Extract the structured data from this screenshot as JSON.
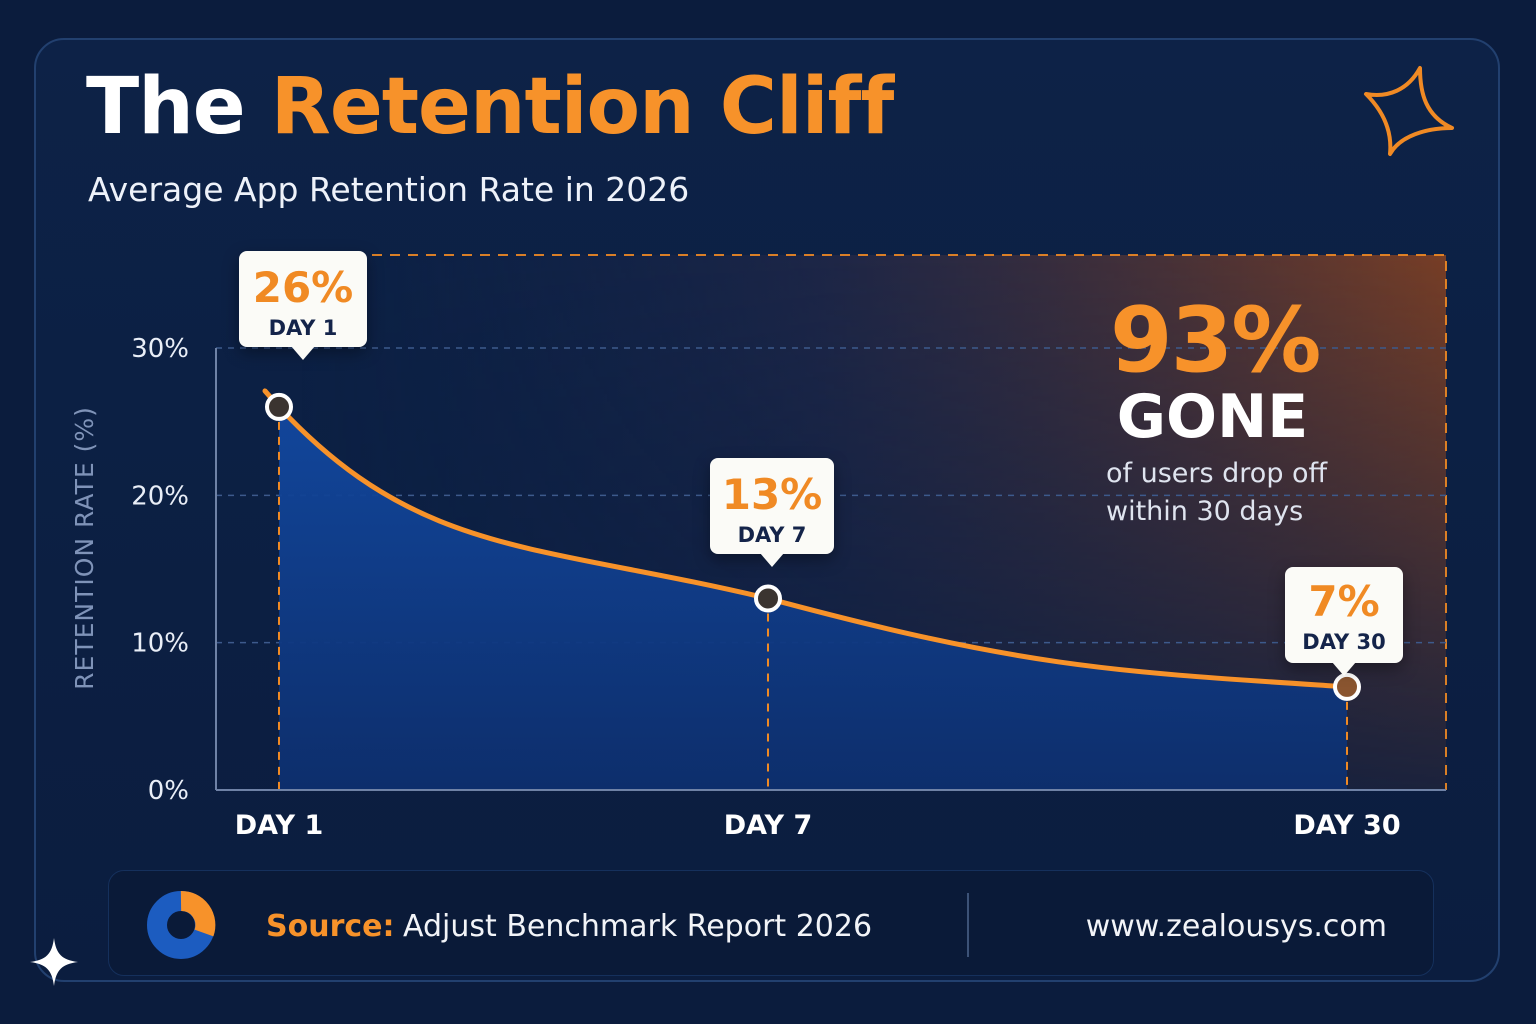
{
  "header": {
    "title_part1": "The ",
    "title_part2": "Retention Cliff",
    "subtitle": "Average App Retention Rate in 2026"
  },
  "colors": {
    "background": "#0b1c3d",
    "accent": "#f7922a",
    "area_fill": "#1450a8",
    "callout_bg": "#fbfbf7",
    "text_dark": "#14244a"
  },
  "chart_data": {
    "type": "area",
    "ylabel": "RETENTION RATE (%)",
    "ylim": [
      0,
      30
    ],
    "y_ticks": [
      "0%",
      "10%",
      "20%",
      "30%"
    ],
    "y_tick_values": [
      0,
      10,
      20,
      30
    ],
    "x_ticks": [
      "DAY 1",
      "DAY 7",
      "DAY 30"
    ],
    "series": [
      {
        "points": [
          {
            "label": "DAY 1",
            "value": 26
          },
          {
            "label": "DAY 7",
            "value": 13
          },
          {
            "label": "DAY 30",
            "value": 7
          }
        ]
      }
    ],
    "grid": true,
    "callouts": [
      {
        "value": "26%",
        "day": "DAY 1"
      },
      {
        "value": "13%",
        "day": "DAY 7"
      },
      {
        "value": "7%",
        "day": "DAY 30"
      }
    ],
    "highlight": {
      "value": "93%",
      "word": "GONE",
      "caption_line1": "of users drop off",
      "caption_line2": "within 30 days"
    }
  },
  "footer": {
    "source_label": "Source:",
    "source_text": "Adjust Benchmark Report 2026",
    "url": "www.zealousys.com",
    "icon": "donut-chart-icon"
  },
  "decor": {
    "sparkle_top_right": "sparkle-outline-icon",
    "sparkle_bottom_left": "sparkle-filled-icon"
  }
}
